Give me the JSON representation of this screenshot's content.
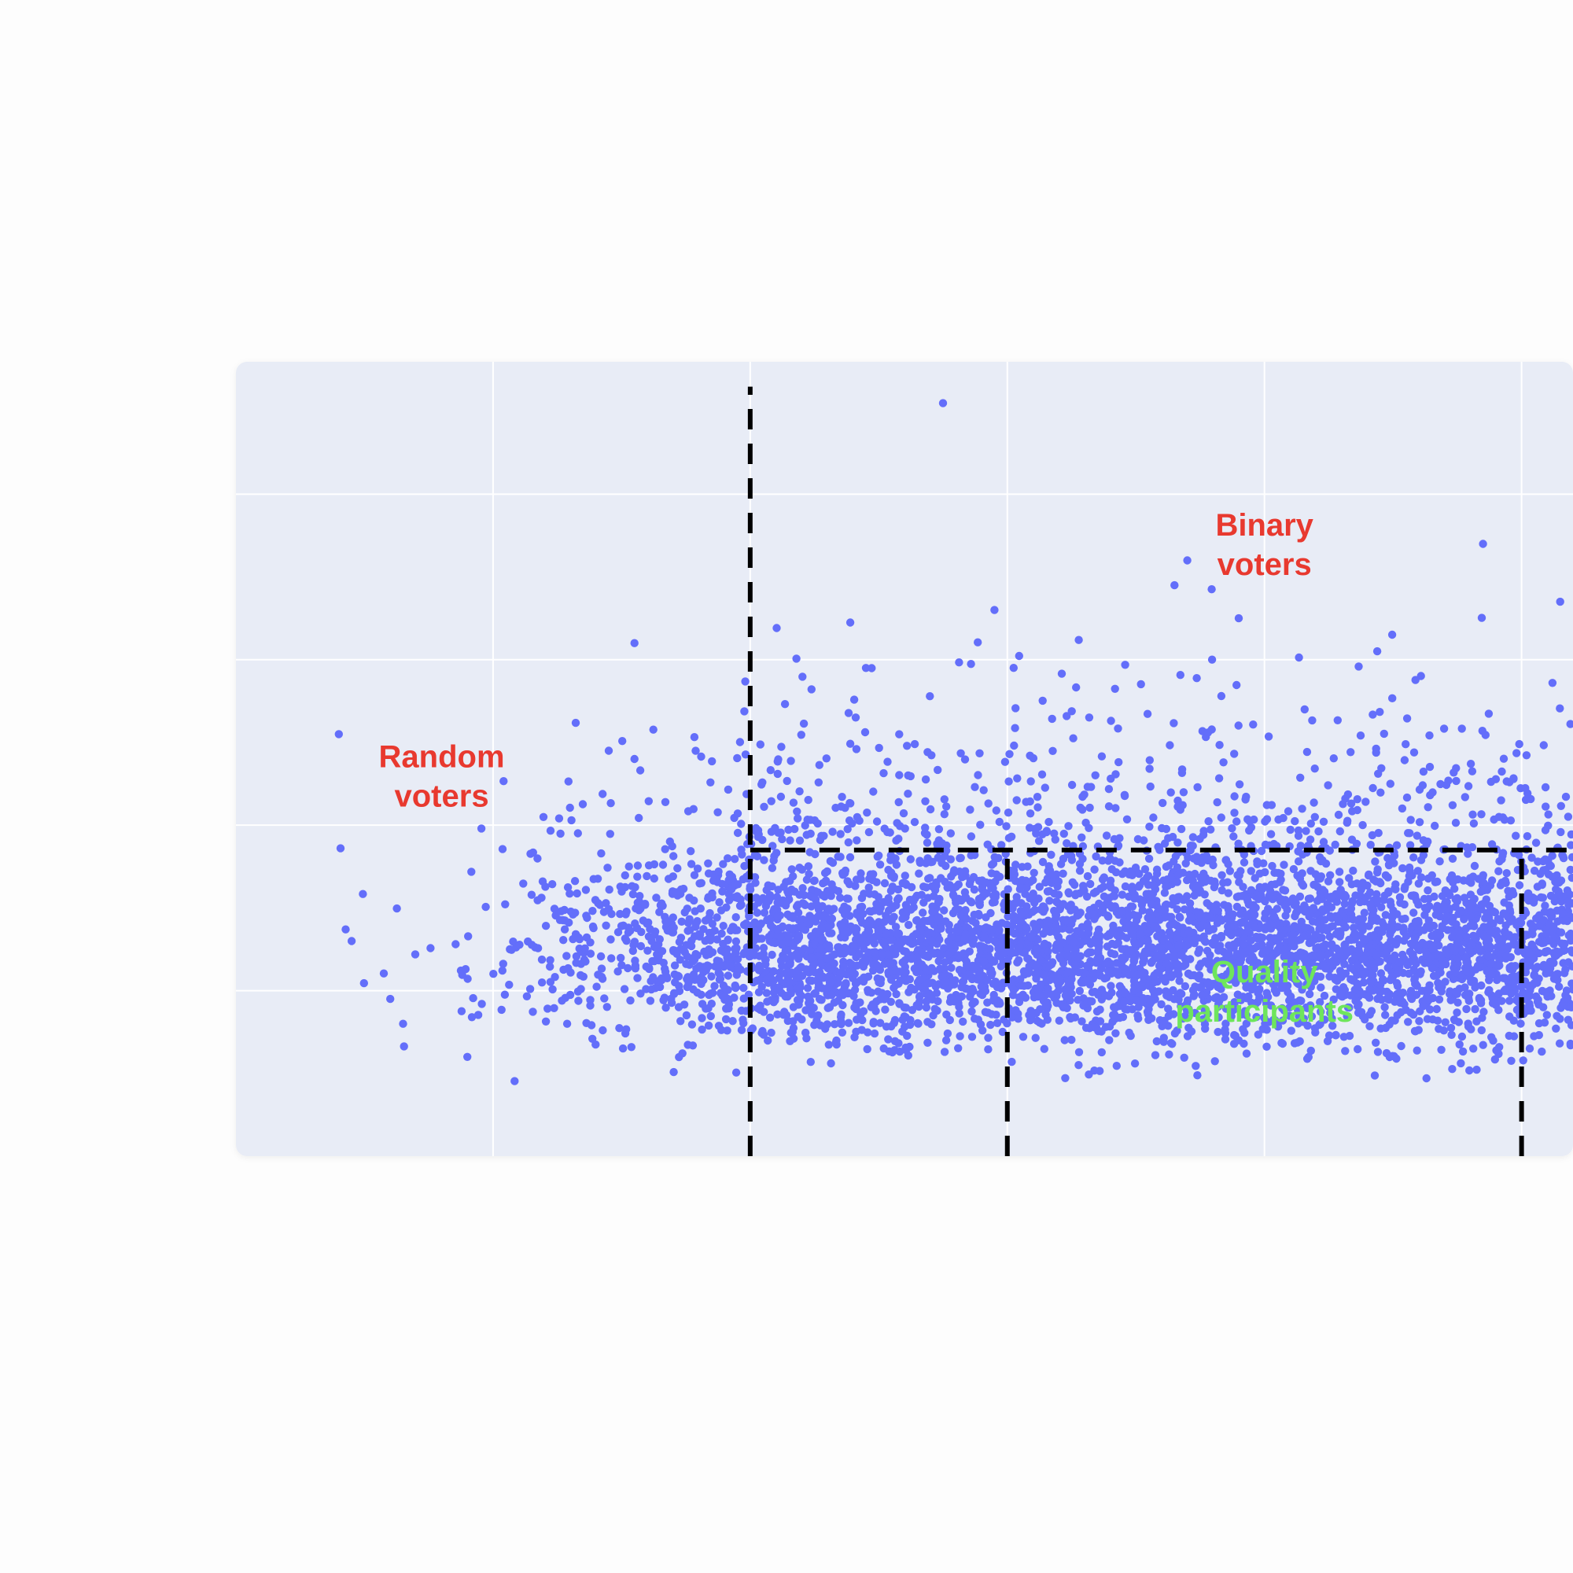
{
  "chart_data": {
    "type": "scatter",
    "title": "",
    "xlabel": "",
    "ylabel": "",
    "xlim": [
      0,
      5.2
    ],
    "ylim": [
      0,
      4.8
    ],
    "grid": true,
    "colors": {
      "background": "#e8ecf6",
      "grid": "#ffffff",
      "points": "#636efa",
      "divider": "#000000",
      "annotation_outlier": "#e8392f",
      "annotation_quality": "#6ee55c"
    },
    "annotations": [
      {
        "text_lines": [
          "Random",
          "voters"
        ],
        "x": 0.8,
        "y": 2.35,
        "color": "#e8392f"
      },
      {
        "text_lines": [
          "Binary",
          "voters"
        ],
        "x": 4.0,
        "y": 3.75,
        "color": "#e8392f"
      },
      {
        "text_lines": [
          "Quality",
          "participants"
        ],
        "x": 4.0,
        "y": 1.05,
        "color": "#6ee55c"
      }
    ],
    "dividers": [
      {
        "x1": 2.0,
        "y1": 0.0,
        "x2": 2.0,
        "y2": 4.65
      },
      {
        "x1": 2.0,
        "y1": 1.85,
        "x2": 5.2,
        "y2": 1.85
      },
      {
        "x1": 3.0,
        "y1": 0.0,
        "x2": 3.0,
        "y2": 1.85
      },
      {
        "x1": 5.0,
        "y1": 0.0,
        "x2": 5.0,
        "y2": 1.85
      }
    ],
    "distribution": {
      "n_points": 5200,
      "x_range": [
        0.4,
        5.2
      ],
      "y_center": 1.25,
      "y_sd": 0.28,
      "y_min": 0.45
    },
    "outliers": [
      {
        "x": 2.75,
        "y": 4.55
      },
      {
        "x": 3.7,
        "y": 3.6
      },
      {
        "x": 3.65,
        "y": 3.45
      },
      {
        "x": 3.9,
        "y": 3.25
      },
      {
        "x": 2.95,
        "y": 3.3
      },
      {
        "x": 4.85,
        "y": 3.7
      },
      {
        "x": 5.15,
        "y": 3.35
      },
      {
        "x": 1.55,
        "y": 3.1
      },
      {
        "x": 2.45,
        "y": 2.95
      },
      {
        "x": 0.4,
        "y": 2.55
      },
      {
        "x": 1.45,
        "y": 2.45
      },
      {
        "x": 1.55,
        "y": 2.4
      },
      {
        "x": 0.45,
        "y": 1.3
      },
      {
        "x": 0.6,
        "y": 0.95
      },
      {
        "x": 0.65,
        "y": 0.8
      },
      {
        "x": 0.9,
        "y": 0.6
      }
    ]
  }
}
